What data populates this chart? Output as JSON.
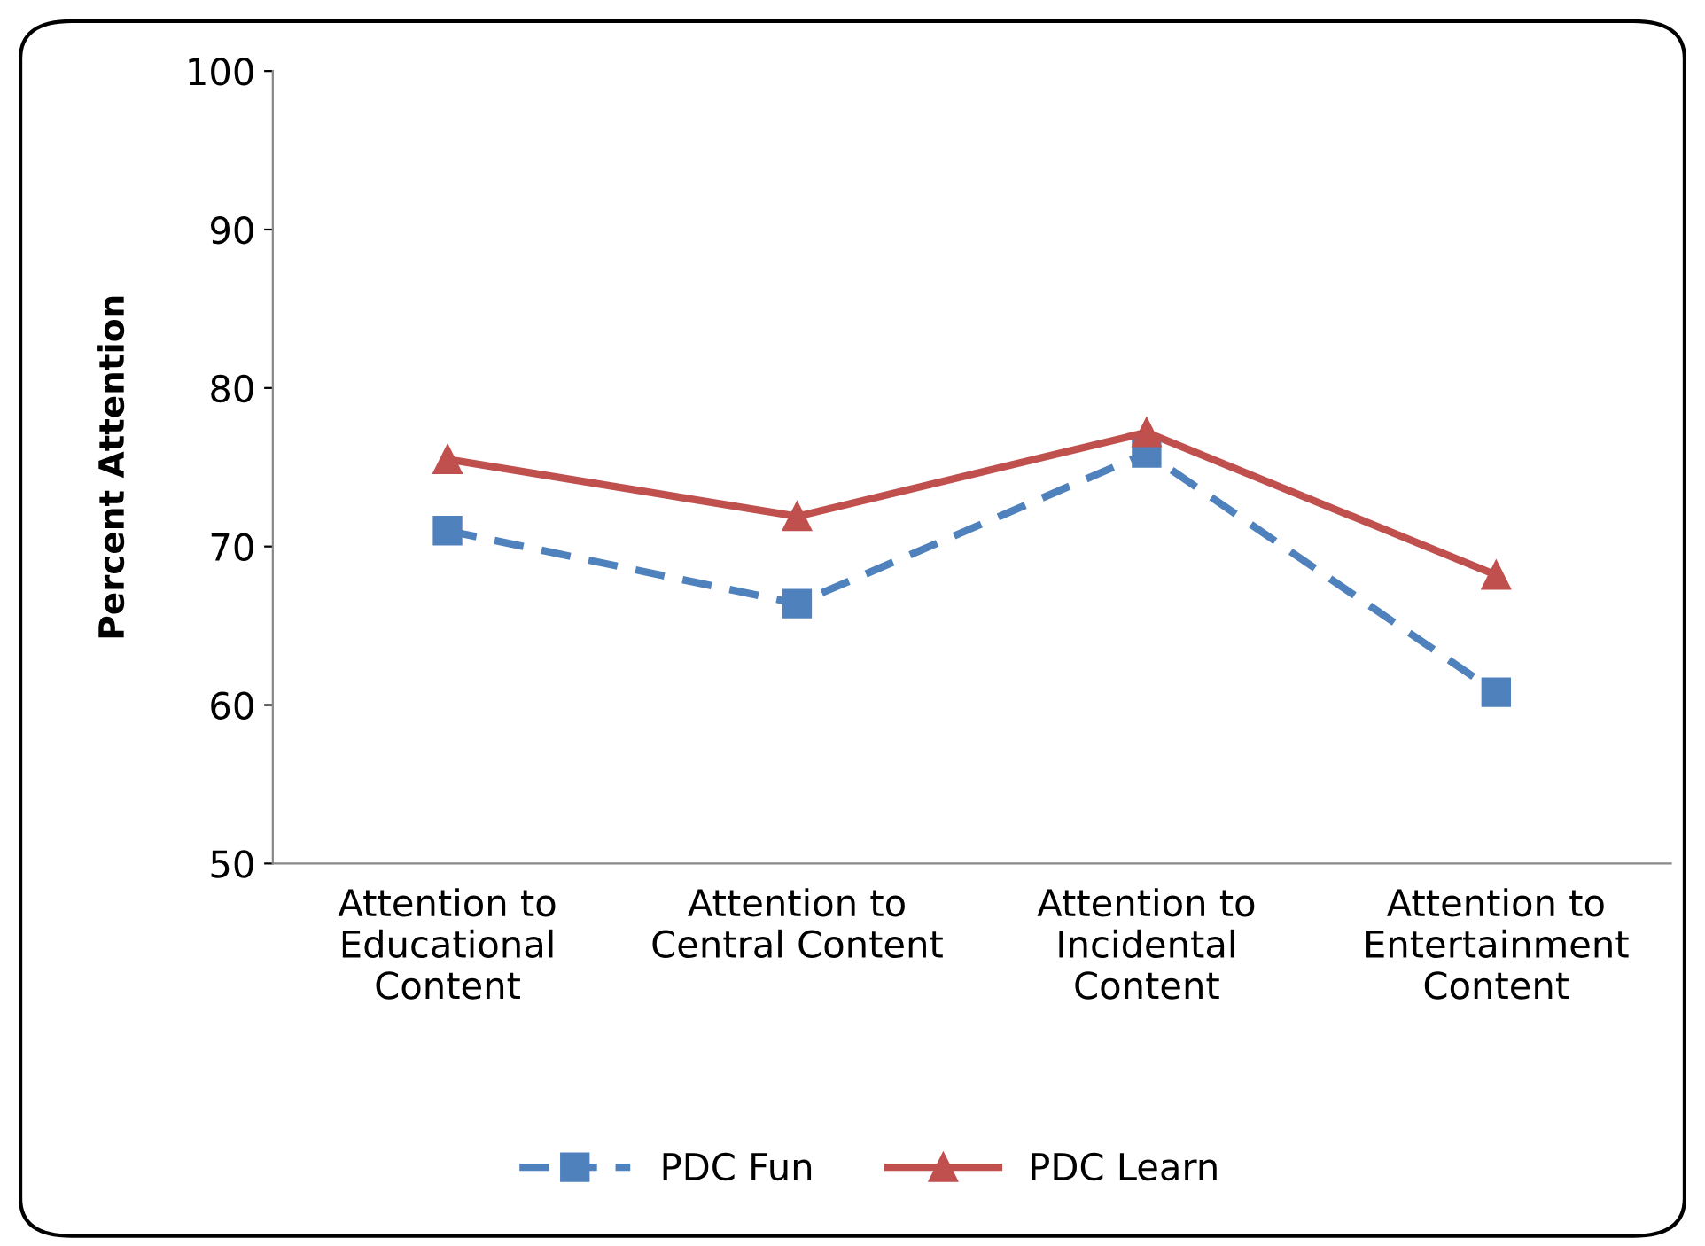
{
  "chart_data": {
    "type": "line",
    "ylabel": "Percent Attention",
    "categories": [
      "Attention to\nEducational\nContent",
      "Attention to\nCentral Content",
      "Attention to\nIncidental\nContent",
      "Attention to\nEntertainment\nContent"
    ],
    "series": [
      {
        "name": "PDC Fun",
        "color": "#4f81bd",
        "values": [
          71.0,
          66.4,
          75.9,
          60.8
        ],
        "marker": "square",
        "line_style": "dashed"
      },
      {
        "name": "PDC Learn",
        "color": "#c0504d",
        "values": [
          75.5,
          71.9,
          77.2,
          68.2
        ],
        "marker": "triangle",
        "line_style": "solid"
      }
    ],
    "ylim": [
      50,
      100
    ],
    "yticks": [
      50,
      60,
      70,
      80,
      90,
      100
    ],
    "grid": false,
    "legend": "bottom"
  }
}
